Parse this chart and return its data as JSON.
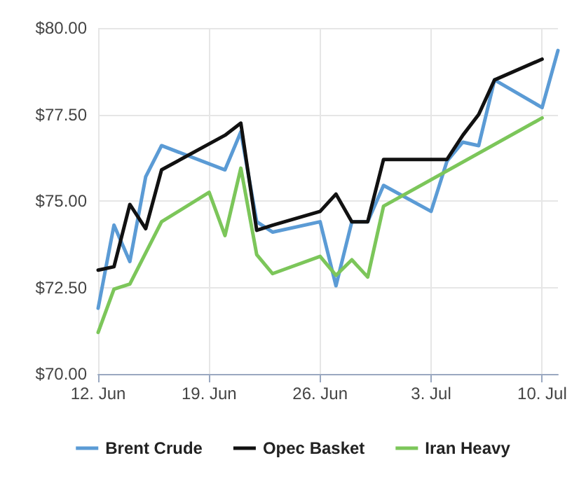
{
  "chart_data": {
    "type": "line",
    "xlim": [
      "--06-12",
      "--07-11"
    ],
    "xticks": [
      {
        "value": "--06-12",
        "label": "12. Jun"
      },
      {
        "value": "--06-19",
        "label": "19. Jun"
      },
      {
        "value": "--06-26",
        "label": "26. Jun"
      },
      {
        "value": "--07-03",
        "label": "3. Jul"
      },
      {
        "value": "--07-10",
        "label": "10. Jul"
      }
    ],
    "ylim": [
      70,
      80
    ],
    "yticks": [
      {
        "value": 70,
        "label": "$70.00"
      },
      {
        "value": 72.5,
        "label": "$72.50"
      },
      {
        "value": 75,
        "label": "$75.00"
      },
      {
        "value": 77.5,
        "label": "$77.50"
      },
      {
        "value": 80,
        "label": "$80.00"
      }
    ],
    "grid": true,
    "legend": "bottom",
    "marker": "none",
    "line_style": "solid",
    "series": [
      {
        "name": "Brent Crude",
        "color": "#5b9bd5",
        "x": [
          "--06-12",
          "--06-13",
          "--06-14",
          "--06-15",
          "--06-16",
          "--06-20",
          "--06-21",
          "--06-22",
          "--06-23",
          "--06-26",
          "--06-27",
          "--06-28",
          "--06-29",
          "--06-30",
          "--07-03",
          "--07-04",
          "--07-05",
          "--07-06",
          "--07-07",
          "--07-10",
          "--07-11"
        ],
        "values": [
          71.9,
          74.3,
          73.25,
          75.7,
          76.6,
          75.9,
          77.0,
          74.4,
          74.1,
          74.4,
          72.55,
          74.4,
          74.4,
          75.45,
          74.7,
          76.15,
          76.7,
          76.6,
          78.5,
          77.7,
          79.35
        ]
      },
      {
        "name": "Opec Basket",
        "color": "#111111",
        "x": [
          "--06-12",
          "--06-13",
          "--06-14",
          "--06-15",
          "--06-16",
          "--06-20",
          "--06-21",
          "--06-22",
          "--06-23",
          "--06-26",
          "--06-27",
          "--06-28",
          "--06-29",
          "--06-30",
          "--07-03",
          "--07-04",
          "--07-05",
          "--07-06",
          "--07-07",
          "--07-10"
        ],
        "values": [
          73.0,
          73.1,
          74.9,
          74.2,
          75.9,
          76.9,
          77.25,
          74.15,
          74.3,
          74.7,
          75.2,
          74.4,
          74.4,
          76.2,
          76.2,
          76.2,
          76.9,
          77.5,
          78.5,
          79.1
        ]
      },
      {
        "name": "Iran Heavy",
        "color": "#7cc65a",
        "x": [
          "--06-12",
          "--06-13",
          "--06-14",
          "--06-15",
          "--06-16",
          "--06-19",
          "--06-20",
          "--06-21",
          "--06-22",
          "--06-23",
          "--06-26",
          "--06-27",
          "--06-28",
          "--06-29",
          "--06-30",
          "--07-10"
        ],
        "values": [
          71.2,
          72.45,
          72.6,
          73.5,
          74.4,
          75.25,
          74.0,
          75.95,
          73.45,
          72.9,
          73.4,
          72.85,
          73.3,
          72.8,
          74.85,
          77.4
        ]
      }
    ]
  }
}
